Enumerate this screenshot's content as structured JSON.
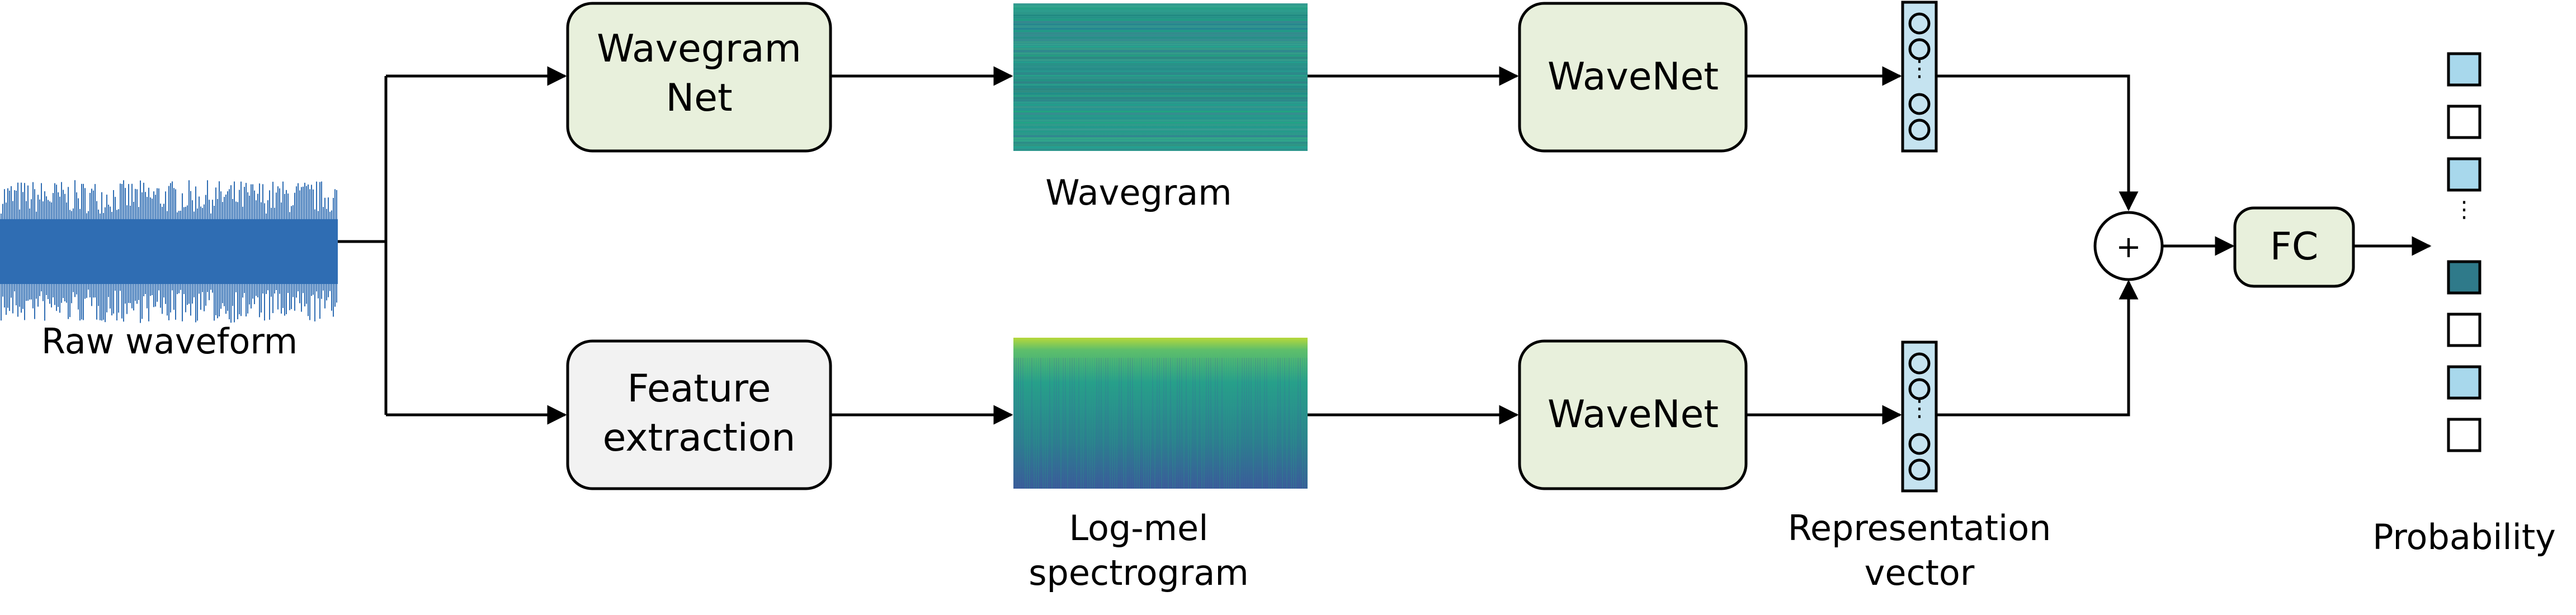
{
  "raw_waveform": {
    "label": "Raw waveform",
    "color": "#2f6db3"
  },
  "wavegram_net": {
    "line1": "Wavegram",
    "line2": "Net",
    "fill": "#e8f0dc"
  },
  "feature_extraction": {
    "line1": "Feature",
    "line2": "extraction",
    "fill": "#f2f2f2"
  },
  "wavegram": {
    "label": "Wavegram"
  },
  "logmel": {
    "line1": "Log-mel",
    "line2": "spectrogram"
  },
  "wavenet_top": {
    "label": "WaveNet",
    "fill": "#e8f0dc"
  },
  "wavenet_bottom": {
    "label": "WaveNet",
    "fill": "#e8f0dc"
  },
  "representation_vector": {
    "line1": "Representation",
    "line2": "vector",
    "dots": "⋮",
    "fill": "#c5e3f0"
  },
  "plus_node": {
    "label": "+"
  },
  "fc": {
    "label": "FC",
    "fill": "#e8f0dc"
  },
  "probability": {
    "label": "Probability",
    "dots": "⋮",
    "top_cells": [
      "#a8d8ec",
      "#ffffff",
      "#a8d8ec"
    ],
    "bottom_cells": [
      "#2f7a8a",
      "#ffffff",
      "#a8d8ec",
      "#ffffff"
    ]
  },
  "colors": {
    "wavegram_base": "#2a8a8a",
    "logmel_top": "#9ccc3c",
    "logmel_bottom": "#3a5a9a"
  }
}
